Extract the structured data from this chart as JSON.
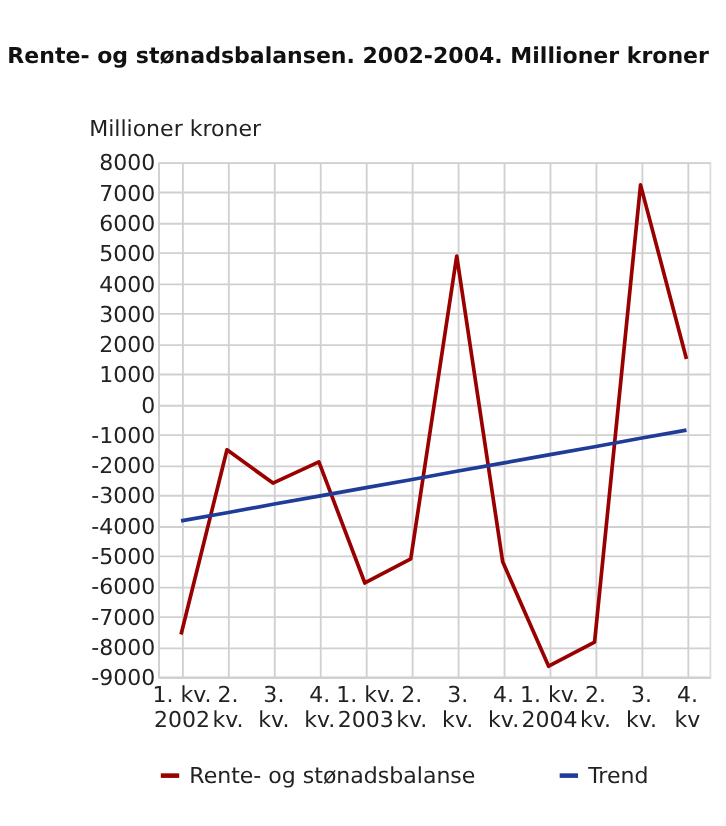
{
  "chart_data": {
    "type": "line",
    "title": "Rente- og stønadsbalansen. 2002-2004. Millioner kroner",
    "ylabel": "Millioner kroner",
    "categories": [
      "1. kv. 2002",
      "2. kv.",
      "3. kv.",
      "4. kv.",
      "1. kv. 2003",
      "2. kv.",
      "3. kv.",
      "4. kv.",
      "1. kv. 2004",
      "2. kv.",
      "3. kv.",
      "4. kv"
    ],
    "series": [
      {
        "name": "Rente- og stønadsbalanse",
        "color": "#990000",
        "values": [
          -7600,
          -1500,
          -2600,
          -1900,
          -5900,
          -5100,
          4900,
          -5200,
          -8650,
          -7850,
          7250,
          1500
        ]
      },
      {
        "name": "Trend",
        "color": "#1f3c99",
        "values": [
          -3850,
          -3580,
          -3300,
          -3030,
          -2760,
          -2490,
          -2210,
          -1940,
          -1670,
          -1400,
          -1120,
          -850
        ]
      }
    ],
    "ylim": [
      -9000,
      8000
    ],
    "yticks": [
      -9000,
      -8000,
      -7000,
      -6000,
      -5000,
      -4000,
      -3000,
      -2000,
      -1000,
      0,
      1000,
      2000,
      3000,
      4000,
      5000,
      6000,
      7000,
      8000
    ],
    "grid": true,
    "legend": "bottom",
    "marker": "none",
    "line_style": "solid"
  }
}
